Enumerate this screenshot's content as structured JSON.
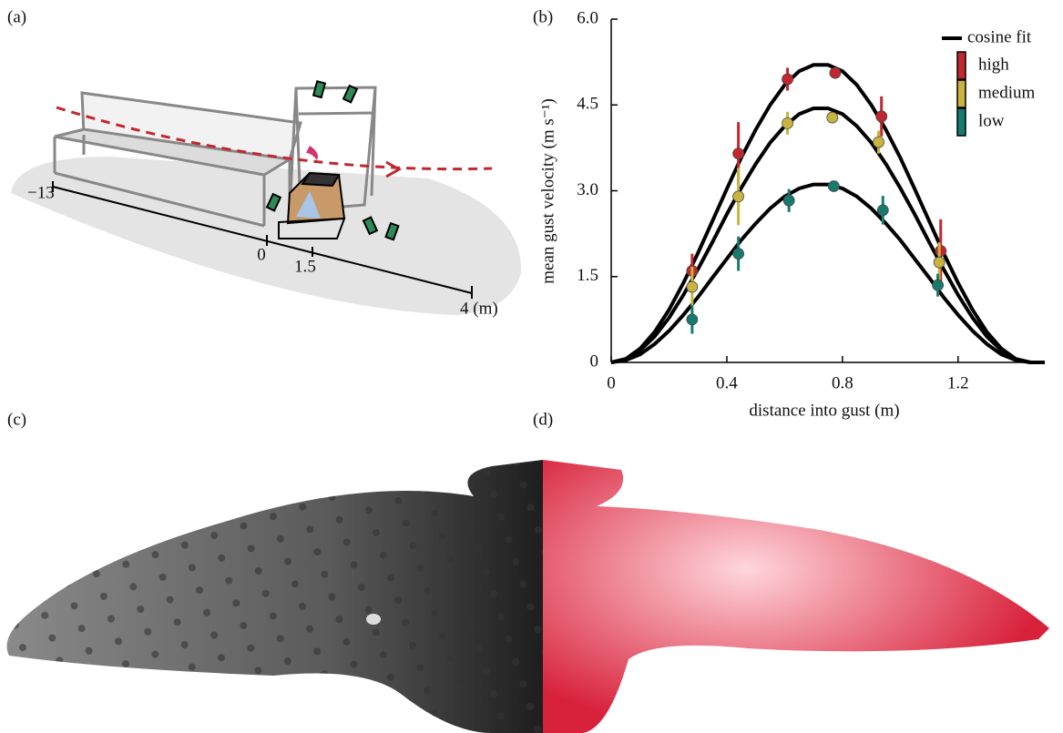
{
  "panel_a": {
    "label": "(a)",
    "axis_labels": [
      "−13",
      "0",
      "1.5",
      "4 (m)"
    ]
  },
  "chart_data": {
    "type": "scatter",
    "panel_label": "(b)",
    "xlabel": "distance into gust (m)",
    "ylabel": "mean gust velocity (m s⁻¹)",
    "xlim": [
      0,
      1.5
    ],
    "xticks": [
      0,
      0.4,
      0.8,
      1.2
    ],
    "ylim": [
      0,
      6
    ],
    "yticks": [
      0,
      1.5,
      {
        "value": 3,
        "label": "3.0"
      },
      4.5,
      {
        "value": 6,
        "label": "6.0"
      }
    ],
    "legend": "top-right",
    "series": [
      {
        "name": "high",
        "color": "#c1272d",
        "x": [
          0.28,
          0.44,
          0.61,
          0.775,
          0.935,
          1.14
        ],
        "values": [
          1.6,
          3.65,
          4.95,
          5.06,
          4.3,
          1.95
        ],
        "errors": [
          0.3,
          0.55,
          0.2,
          0,
          0.35,
          0.55
        ]
      },
      {
        "name": "medium",
        "color": "#c8b43f",
        "x": [
          0.28,
          0.44,
          0.61,
          0.765,
          0.925,
          1.135
        ],
        "values": [
          1.32,
          2.9,
          4.18,
          4.28,
          3.85,
          1.75
        ],
        "errors": [
          0.35,
          0.5,
          0.2,
          0,
          0.2,
          0.35
        ]
      },
      {
        "name": "low",
        "color": "#167a6e",
        "x": [
          0.28,
          0.44,
          0.615,
          0.77,
          0.94,
          1.13
        ],
        "values": [
          0.75,
          1.9,
          2.83,
          3.08,
          2.66,
          1.35
        ],
        "errors": [
          0.25,
          0.3,
          0.2,
          0,
          0.25,
          0.2
        ]
      }
    ],
    "fit": {
      "name": "cosine fit",
      "color": "#000000",
      "x": [
        0,
        0.05,
        0.1,
        0.15,
        0.2,
        0.25,
        0.3,
        0.35,
        0.4,
        0.45,
        0.5,
        0.55,
        0.6,
        0.65,
        0.7,
        0.75,
        0.8,
        0.85,
        0.9,
        0.95,
        1.0,
        1.05,
        1.1,
        1.15,
        1.2,
        1.25,
        1.3,
        1.35,
        1.4,
        1.45,
        1.5
      ],
      "curves": [
        [
          0,
          0.06,
          0.24,
          0.53,
          0.92,
          1.39,
          1.91,
          2.47,
          3.03,
          3.58,
          4.07,
          4.5,
          4.85,
          5.09,
          5.2,
          5.2,
          5.09,
          4.85,
          4.5,
          4.07,
          3.58,
          3.03,
          2.47,
          1.91,
          1.39,
          0.92,
          0.53,
          0.24,
          0.06,
          0,
          0
        ],
        [
          0,
          0.05,
          0.21,
          0.45,
          0.78,
          1.18,
          1.63,
          2.1,
          2.59,
          3.05,
          3.47,
          3.84,
          4.13,
          4.34,
          4.44,
          4.44,
          4.34,
          4.13,
          3.84,
          3.47,
          3.05,
          2.59,
          2.1,
          1.63,
          1.18,
          0.78,
          0.45,
          0.21,
          0.05,
          0,
          0
        ],
        [
          0,
          0.04,
          0.14,
          0.32,
          0.55,
          0.83,
          1.14,
          1.48,
          1.81,
          2.14,
          2.43,
          2.69,
          2.9,
          3.04,
          3.11,
          3.11,
          3.04,
          2.9,
          2.69,
          2.43,
          2.14,
          1.81,
          1.48,
          1.14,
          0.83,
          0.55,
          0.32,
          0.14,
          0.04,
          0,
          0
        ]
      ]
    }
  },
  "panel_c": {
    "label": "(c)"
  },
  "panel_d": {
    "label": "(d)"
  }
}
